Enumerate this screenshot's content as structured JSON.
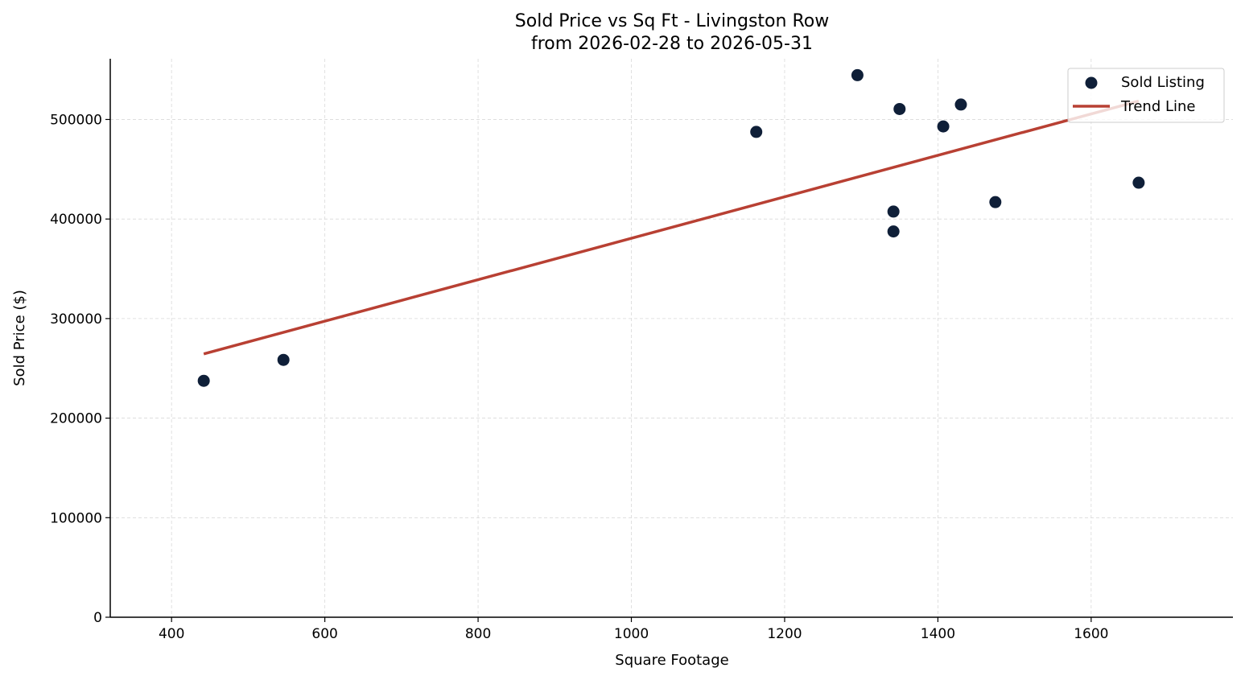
{
  "chart_data": {
    "type": "scatter",
    "title": "Sold Price vs Sq Ft - Livingston Row",
    "subtitle": "from 2026-02-28 to 2026-05-31",
    "xlabel": "Square Footage",
    "ylabel": "Sold Price ($)",
    "xlim": [
      320,
      1785
    ],
    "ylim": [
      0,
      561000
    ],
    "xticks": [
      400,
      600,
      800,
      1000,
      1200,
      1400,
      1600
    ],
    "yticks": [
      0,
      100000,
      200000,
      300000,
      400000,
      500000
    ],
    "grid": true,
    "legend_position": "top-right",
    "series": [
      {
        "name": "Sold Listing",
        "kind": "scatter",
        "color": "#0f1f38",
        "points": [
          {
            "x": 442,
            "y": 237500
          },
          {
            "x": 546,
            "y": 258500
          },
          {
            "x": 1163,
            "y": 487500
          },
          {
            "x": 1295,
            "y": 544500
          },
          {
            "x": 1342,
            "y": 407500
          },
          {
            "x": 1342,
            "y": 387500
          },
          {
            "x": 1350,
            "y": 510500
          },
          {
            "x": 1407,
            "y": 493000
          },
          {
            "x": 1430,
            "y": 515000
          },
          {
            "x": 1475,
            "y": 417000
          },
          {
            "x": 1662,
            "y": 436500
          }
        ]
      },
      {
        "name": "Trend Line",
        "kind": "line",
        "color": "#b84033",
        "points": [
          {
            "x": 442,
            "y": 264500
          },
          {
            "x": 1662,
            "y": 518500
          }
        ]
      }
    ]
  }
}
